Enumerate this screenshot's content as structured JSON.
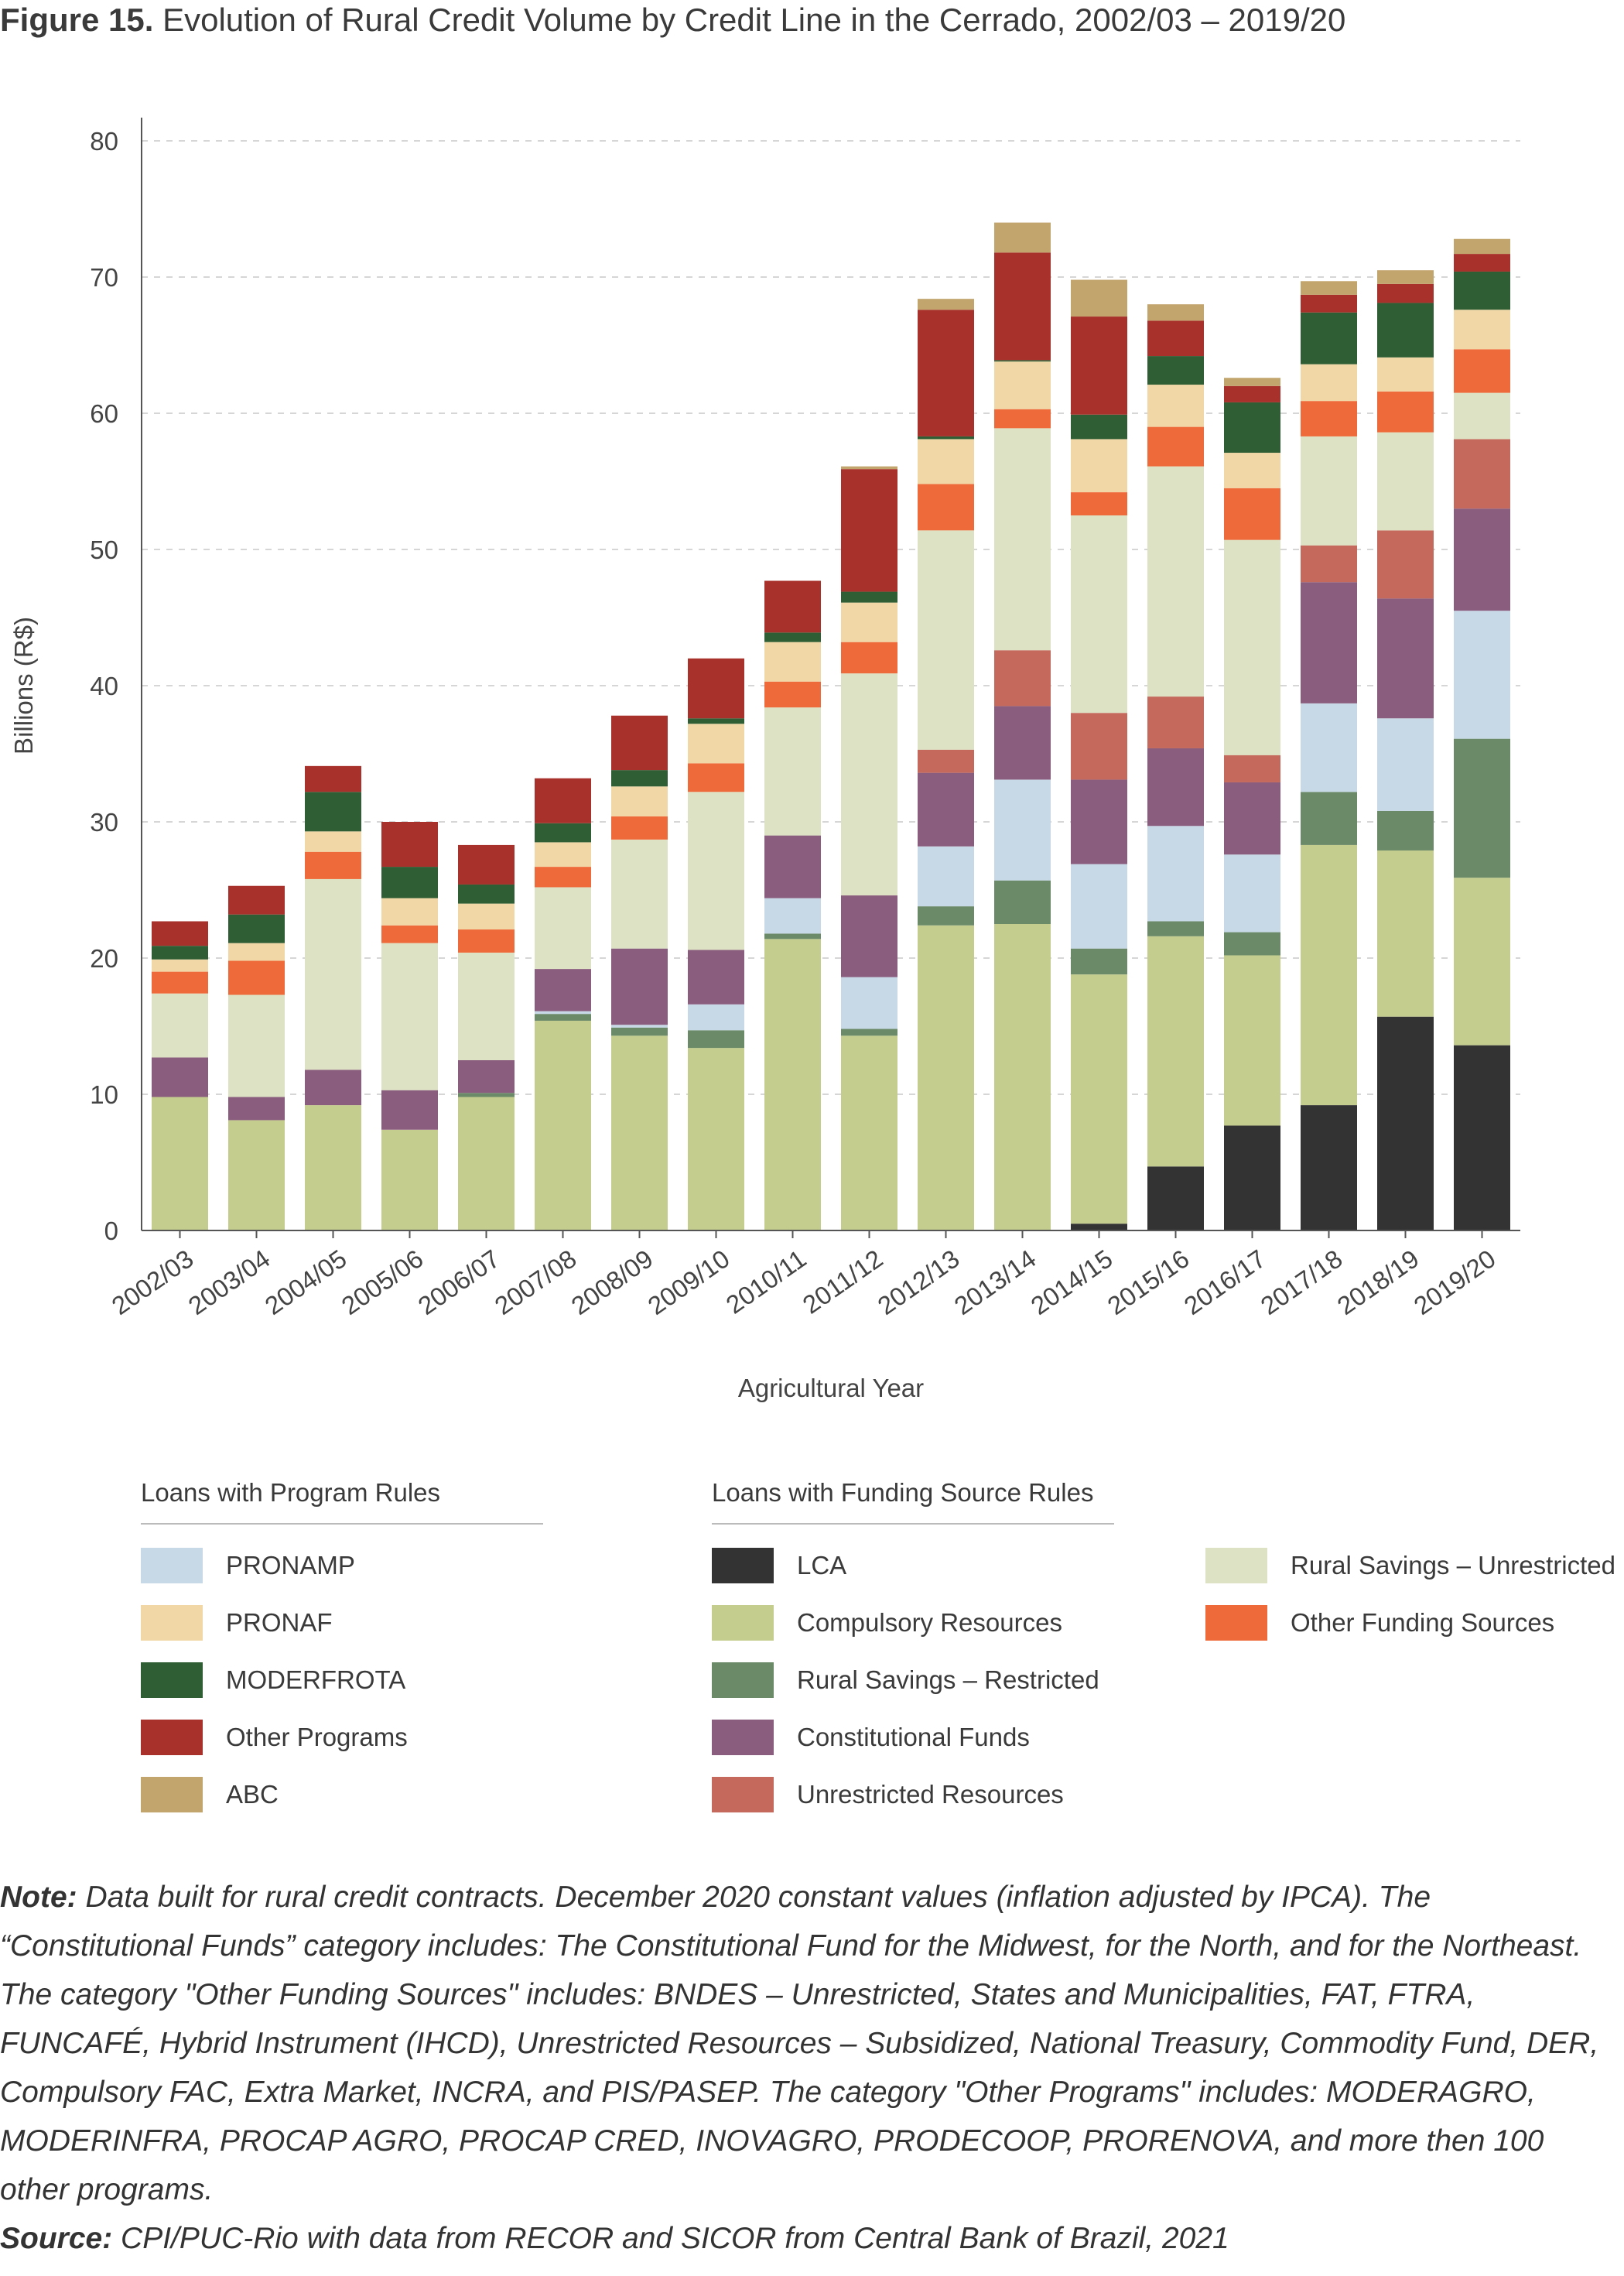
{
  "title": {
    "figure_label": "Figure 15.",
    "text": "Evolution of Rural Credit Volume by Credit Line in the Cerrado, 2002/03 – 2019/20"
  },
  "chart_data": {
    "type": "bar",
    "stacked": true,
    "xlabel": "Agricultural Year",
    "ylabel": "Billions (R$)",
    "ylim": [
      0,
      80
    ],
    "yticks": [
      0,
      10,
      20,
      30,
      40,
      50,
      60,
      70,
      80
    ],
    "grid": "horizontal dashed",
    "categories": [
      "2002/03",
      "2003/04",
      "2004/05",
      "2005/06",
      "2006/07",
      "2007/08",
      "2008/09",
      "2009/10",
      "2010/11",
      "2011/12",
      "2012/13",
      "2013/14",
      "2014/15",
      "2015/16",
      "2016/17",
      "2017/18",
      "2018/19",
      "2019/20"
    ],
    "series": [
      {
        "name": "LCA",
        "color": "#333333",
        "values": [
          0,
          0,
          0,
          0,
          0,
          0,
          0,
          0,
          0,
          0,
          0,
          0,
          0.5,
          4.7,
          7.7,
          9.2,
          15.7,
          13.6
        ]
      },
      {
        "name": "Compulsory Resources",
        "color": "#c5cd8e",
        "values": [
          9.8,
          8.1,
          9.2,
          7.4,
          9.8,
          15.4,
          14.3,
          13.4,
          21.4,
          14.3,
          22.4,
          22.5,
          18.3,
          16.9,
          12.5,
          19.1,
          12.2,
          12.3
        ]
      },
      {
        "name": "Rural Savings – Restricted",
        "color": "#6b8a68",
        "values": [
          0,
          0,
          0,
          0,
          0.3,
          0.5,
          0.6,
          1.3,
          0.4,
          0.5,
          1.4,
          3.2,
          1.9,
          1.1,
          1.7,
          3.9,
          2.9,
          10.2
        ]
      },
      {
        "name": "PRONAMP",
        "color": "#c7d9e6",
        "values": [
          0,
          0,
          0,
          0,
          0,
          0.2,
          0.2,
          1.9,
          2.6,
          3.8,
          4.4,
          7.4,
          6.2,
          7.0,
          5.7,
          6.5,
          6.8,
          9.4
        ]
      },
      {
        "name": "Constitutional Funds",
        "color": "#8a5c7e",
        "values": [
          2.9,
          1.7,
          2.6,
          2.9,
          2.4,
          3.1,
          5.6,
          4.0,
          4.6,
          6.0,
          5.4,
          5.4,
          6.2,
          5.7,
          5.3,
          8.9,
          8.8,
          7.5
        ]
      },
      {
        "name": "Unrestricted Resources",
        "color": "#c4695c",
        "values": [
          0,
          0,
          0,
          0,
          0,
          0,
          0,
          0,
          0,
          0,
          1.7,
          4.1,
          4.9,
          3.8,
          2.0,
          2.7,
          5.0,
          5.1
        ]
      },
      {
        "name": "Rural Savings – Unrestricted",
        "color": "#dce2c3",
        "values": [
          4.7,
          7.5,
          14.0,
          10.8,
          7.9,
          6.0,
          8.0,
          11.6,
          9.4,
          16.3,
          16.1,
          16.3,
          14.5,
          16.9,
          15.8,
          8.0,
          7.2,
          3.4
        ]
      },
      {
        "name": "Other Funding Sources",
        "color": "#ef6a3a",
        "values": [
          1.6,
          2.5,
          2.0,
          1.3,
          1.7,
          1.5,
          1.7,
          2.1,
          1.9,
          2.3,
          3.4,
          1.4,
          1.7,
          2.9,
          3.8,
          2.6,
          3.0,
          3.2
        ]
      },
      {
        "name": "PRONAF",
        "color": "#f1d6a6",
        "values": [
          0.9,
          1.3,
          1.5,
          2.0,
          1.9,
          1.8,
          2.2,
          2.9,
          2.9,
          2.9,
          3.3,
          3.5,
          3.9,
          3.1,
          2.6,
          2.7,
          2.5,
          2.9
        ]
      },
      {
        "name": "MODERFROTA",
        "color": "#2f5e34",
        "values": [
          1.0,
          2.1,
          2.9,
          2.3,
          1.4,
          1.4,
          1.2,
          0.4,
          0.7,
          0.8,
          0.2,
          0.1,
          1.8,
          2.1,
          3.7,
          3.8,
          4.0,
          2.8
        ]
      },
      {
        "name": "Other Programs",
        "color": "#a8312c",
        "values": [
          1.8,
          2.1,
          1.9,
          3.3,
          2.9,
          3.3,
          4.0,
          4.4,
          3.8,
          9.0,
          9.3,
          7.9,
          7.2,
          2.6,
          1.2,
          1.3,
          1.4,
          1.3
        ]
      },
      {
        "name": "ABC",
        "color": "#c2a56d",
        "values": [
          0,
          0,
          0,
          0,
          0,
          0,
          0,
          0,
          0,
          0.2,
          0.8,
          2.2,
          2.7,
          1.2,
          0.6,
          1.0,
          1.0,
          1.1
        ]
      }
    ]
  },
  "legend": {
    "program_heading": "Loans with Program Rules",
    "funding_heading": "Loans with Funding Source Rules",
    "program_items": [
      {
        "label": "PRONAMP",
        "color": "#c7d9e6"
      },
      {
        "label": "PRONAF",
        "color": "#f1d6a6"
      },
      {
        "label": "MODERFROTA",
        "color": "#2f5e34"
      },
      {
        "label": "Other Programs",
        "color": "#a8312c"
      },
      {
        "label": "ABC",
        "color": "#c2a56d"
      }
    ],
    "funding_items_col1": [
      {
        "label": "LCA",
        "color": "#333333"
      },
      {
        "label": "Compulsory Resources",
        "color": "#c5cd8e"
      },
      {
        "label": "Rural Savings – Restricted",
        "color": "#6b8a68"
      },
      {
        "label": "Constitutional Funds",
        "color": "#8a5c7e"
      },
      {
        "label": "Unrestricted Resources",
        "color": "#c4695c"
      }
    ],
    "funding_items_col2": [
      {
        "label": "Rural Savings – Unrestricted",
        "color": "#dce2c3"
      },
      {
        "label": "Other Funding Sources",
        "color": "#ef6a3a"
      }
    ]
  },
  "note": {
    "label": "Note:",
    "text": "Data built for rural credit contracts. December 2020 constant values (inflation adjusted by IPCA). The “Constitutional Funds” category includes: The Constitutional Fund for the Midwest, for the North, and for the Northeast. The category \"Other Funding Sources\" includes: BNDES – Unrestricted, States and Municipalities, FAT, FTRA, FUNCAFÉ, Hybrid Instrument (IHCD), Unrestricted Resources – Subsidized, National Treasury, Commodity Fund, DER, Compulsory FAC, Extra Market, INCRA, and PIS/PASEP. The category \"Other Programs\" includes: MODERAGRO, MODERINFRA, PROCAP AGRO, PROCAP CRED, INOVAGRO, PRODECOOP, PRORENOVA, and more then 100 other programs."
  },
  "source": {
    "label": "Source:",
    "text": "CPI/PUC-Rio with data from RECOR and SICOR from Central Bank of Brazil, 2021"
  }
}
